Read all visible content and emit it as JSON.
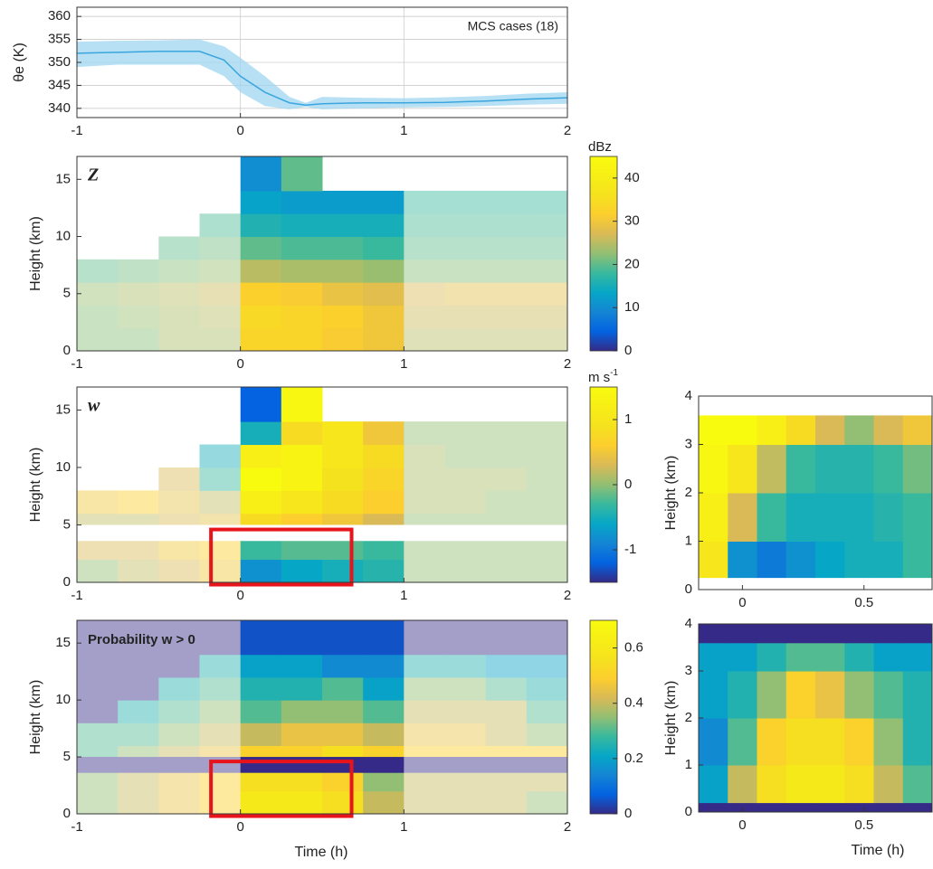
{
  "chart_data": [
    {
      "type": "line",
      "ylabel": "θe (K)",
      "annotation": "MCS cases (18)",
      "x": [
        -1,
        -0.75,
        -0.5,
        -0.25,
        -0.1,
        0,
        0.15,
        0.3,
        0.4,
        0.5,
        0.75,
        1,
        1.25,
        1.5,
        1.75,
        2
      ],
      "values": [
        352,
        352.2,
        352.4,
        352.4,
        350.5,
        347,
        343.5,
        341.2,
        340.7,
        341,
        341.2,
        341.2,
        341.3,
        341.6,
        342,
        342.3
      ],
      "lower": [
        349,
        349.5,
        349.5,
        349.5,
        347,
        343.5,
        340.5,
        339.8,
        340.3,
        339.8,
        340,
        340.2,
        340.3,
        340.5,
        340.8,
        341
      ],
      "upper": [
        354.5,
        354.7,
        354.8,
        355,
        353.5,
        351,
        347,
        342.5,
        341.2,
        342.5,
        342.3,
        342.2,
        342.4,
        342.7,
        343.2,
        343.5
      ],
      "color": "#3aa6dd",
      "band_color": "#9fd6f2",
      "xlim": [
        -1,
        2
      ],
      "xticks": [
        -1,
        0,
        1,
        2
      ],
      "ylim": [
        338,
        362
      ],
      "yticks": [
        340,
        345,
        350,
        355,
        360
      ],
      "grid": true
    },
    {
      "type": "heatmap",
      "title": "Z",
      "ylabel": "Height (km)",
      "xlim": [
        -1,
        2
      ],
      "xticks": [
        -1,
        0,
        1,
        2
      ],
      "ylim": [
        0,
        17
      ],
      "yticks": [
        0,
        5,
        10,
        15
      ],
      "x_edges": [
        -1,
        -0.75,
        -0.5,
        -0.25,
        0,
        0.25,
        0.5,
        0.75,
        1,
        1.25,
        1.5,
        1.75,
        2
      ],
      "y_edges": [
        0,
        2,
        4,
        6,
        8,
        10,
        12,
        14,
        17
      ],
      "values": [
        [
          22,
          22,
          24,
          24,
          33,
          33,
          31,
          30,
          25,
          25,
          25,
          25
        ],
        [
          22,
          23,
          24,
          25,
          34,
          33,
          32,
          30,
          26,
          26,
          26,
          26
        ],
        [
          23,
          24,
          25,
          26,
          32,
          31,
          29,
          28,
          27,
          28,
          28,
          28
        ],
        [
          20,
          21,
          22,
          23,
          25,
          24,
          24,
          23,
          22,
          22,
          22,
          22
        ],
        [
          null,
          null,
          20,
          21,
          20,
          19,
          19,
          18,
          20,
          20,
          20,
          20
        ],
        [
          null,
          null,
          null,
          19,
          16,
          15,
          15,
          15,
          19,
          19,
          19,
          19
        ],
        [
          null,
          null,
          null,
          null,
          13,
          12,
          12,
          12,
          18,
          18,
          18,
          18
        ],
        [
          null,
          null,
          null,
          null,
          10,
          20,
          null,
          null,
          null,
          null,
          null,
          null
        ]
      ],
      "highlight_x": [
        0,
        1
      ],
      "colorbar": {
        "label": "dBz",
        "clim": [
          0,
          45
        ],
        "ticks": [
          0,
          10,
          20,
          30,
          40
        ]
      }
    },
    {
      "type": "heatmap",
      "title": "w",
      "ylabel": "Height (km)",
      "xlim": [
        -1,
        2
      ],
      "xticks": [
        -1,
        0,
        1,
        2
      ],
      "ylim": [
        0,
        17
      ],
      "yticks": [
        0,
        5,
        10,
        15
      ],
      "x_edges": [
        -1,
        -0.75,
        -0.5,
        -0.25,
        0,
        0.25,
        0.5,
        0.75,
        1,
        1.25,
        1.5,
        1.75,
        2
      ],
      "y_edges": [
        0,
        2,
        4,
        6,
        8,
        10,
        12,
        14,
        17
      ],
      "values": [
        [
          0,
          0.2,
          0.3,
          0.5,
          -0.8,
          -0.6,
          -0.5,
          -0.4,
          0,
          0,
          0,
          0
        ],
        [
          0.3,
          0.3,
          0.5,
          0.6,
          -0.3,
          -0.2,
          -0.2,
          -0.3,
          0,
          0,
          0,
          0
        ],
        [
          0.2,
          0.2,
          0.3,
          0.4,
          0.8,
          0.6,
          0.5,
          0.3,
          0,
          0,
          0,
          0
        ],
        [
          0.5,
          0.6,
          0.4,
          0.2,
          1.2,
          1.0,
          0.8,
          0.6,
          0.1,
          0.1,
          0,
          0
        ],
        [
          null,
          null,
          0.3,
          -0.3,
          1.5,
          1.3,
          0.9,
          0.7,
          0.1,
          0.1,
          0.1,
          0
        ],
        [
          null,
          null,
          null,
          -0.5,
          1.2,
          1.3,
          1.0,
          0.8,
          0.1,
          0,
          0,
          0
        ],
        [
          null,
          null,
          null,
          null,
          -0.5,
          0.8,
          1.0,
          0.5,
          0,
          0,
          0,
          0
        ],
        [
          null,
          null,
          null,
          null,
          -1.2,
          1.4,
          null,
          null,
          null,
          null,
          null,
          null
        ]
      ],
      "highlight_x": [
        0,
        1
      ],
      "gap": [
        3.6,
        5
      ],
      "gap_fill": "#ffffff",
      "box": {
        "x": [
          -0.18,
          0.68
        ],
        "y": [
          -0.2,
          4.6
        ],
        "color": "#e8141b"
      },
      "colorbar": {
        "label": "m s",
        "label_superscript": "-1",
        "clim": [
          -1.5,
          1.5
        ],
        "ticks": [
          -1,
          0,
          1
        ]
      }
    },
    {
      "type": "heatmap",
      "title": "Probability w > 0",
      "ylabel": "Height (km)",
      "xlabel": "Time (h)",
      "xlim": [
        -1,
        2
      ],
      "xticks": [
        -1,
        0,
        1,
        2
      ],
      "ylim": [
        0,
        17
      ],
      "yticks": [
        0,
        5,
        10,
        15
      ],
      "x_edges": [
        -1,
        -0.75,
        -0.5,
        -0.25,
        0,
        0.25,
        0.5,
        0.75,
        1,
        1.25,
        1.5,
        1.75,
        2
      ],
      "y_edges": [
        0,
        2,
        4,
        6,
        8,
        10,
        12,
        14,
        17
      ],
      "values": [
        [
          0.35,
          0.4,
          0.45,
          0.5,
          0.6,
          0.6,
          0.55,
          0.4,
          0.4,
          0.4,
          0.4,
          0.35
        ],
        [
          0.35,
          0.4,
          0.45,
          0.5,
          0.55,
          0.55,
          0.5,
          0.35,
          0.4,
          0.4,
          0.4,
          0.4
        ],
        [
          0.3,
          0.35,
          0.4,
          0.45,
          0.5,
          0.5,
          0.55,
          0.5,
          0.5,
          0.5,
          0.5,
          0.5
        ],
        [
          0.3,
          0.3,
          0.35,
          0.4,
          0.4,
          0.45,
          0.45,
          0.4,
          0.45,
          0.45,
          0.4,
          0.35
        ],
        [
          0,
          0.25,
          0.3,
          0.35,
          0.3,
          0.35,
          0.35,
          0.3,
          0.4,
          0.4,
          0.4,
          0.3
        ],
        [
          0,
          0,
          0.25,
          0.3,
          0.25,
          0.25,
          0.3,
          0.2,
          0.35,
          0.35,
          0.3,
          0.25
        ],
        [
          0,
          0,
          0,
          0.25,
          0.2,
          0.2,
          0.15,
          0.15,
          0.25,
          0.25,
          0.2,
          0.2
        ],
        [
          0,
          0,
          0,
          0,
          0.05,
          0.05,
          0.05,
          0.05,
          0,
          0,
          0,
          0
        ]
      ],
      "highlight_x": [
        0,
        1
      ],
      "gap": [
        3.6,
        5
      ],
      "gap_fill": "#352a87",
      "box": {
        "x": [
          -0.18,
          0.68
        ],
        "y": [
          -0.2,
          4.6
        ],
        "color": "#e8141b"
      },
      "colorbar": {
        "clim": [
          0,
          0.7
        ],
        "ticks": [
          0,
          0.2,
          0.4,
          0.6
        ]
      }
    },
    {
      "type": "heatmap",
      "ylabel": "Height (km)",
      "xlim": [
        -0.18,
        0.78
      ],
      "xticks": [
        0,
        0.5
      ],
      "ylim": [
        0,
        4
      ],
      "yticks": [
        0,
        1,
        2,
        3,
        4
      ],
      "x_edges": [
        -0.18,
        -0.06,
        0.06,
        0.18,
        0.3,
        0.42,
        0.54,
        0.66,
        0.78
      ],
      "y_edges": [
        0.25,
        1,
        2,
        3,
        3.6
      ],
      "values": [
        [
          1.0,
          -0.8,
          -1.0,
          -0.8,
          -0.6,
          -0.5,
          -0.5,
          -0.3
        ],
        [
          1.2,
          0.3,
          -0.3,
          -0.5,
          -0.5,
          -0.5,
          -0.4,
          -0.3
        ],
        [
          1.4,
          1.0,
          0.2,
          -0.3,
          -0.4,
          -0.4,
          -0.3,
          -0.1
        ],
        [
          1.5,
          1.5,
          1.2,
          0.8,
          0.3,
          0,
          0.3,
          0.5
        ]
      ],
      "clim": [
        -1.5,
        1.5
      ]
    },
    {
      "type": "heatmap",
      "ylabel": "Height (km)",
      "xlabel": "Time (h)",
      "xlim": [
        -0.18,
        0.78
      ],
      "xticks": [
        0,
        0.5
      ],
      "ylim": [
        0,
        4
      ],
      "yticks": [
        0,
        1,
        2,
        3,
        4
      ],
      "x_edges": [
        -0.18,
        -0.06,
        0.06,
        0.18,
        0.3,
        0.42,
        0.54,
        0.66,
        0.78
      ],
      "y_edges": [
        0,
        0.2,
        1,
        2,
        3,
        3.6,
        4
      ],
      "values": [
        [
          0,
          0,
          0,
          0,
          0,
          0,
          0,
          0
        ],
        [
          0.2,
          0.4,
          0.55,
          0.6,
          0.6,
          0.55,
          0.4,
          0.3
        ],
        [
          0.15,
          0.3,
          0.5,
          0.55,
          0.55,
          0.5,
          0.35,
          0.25
        ],
        [
          0.2,
          0.25,
          0.35,
          0.5,
          0.45,
          0.35,
          0.3,
          0.25
        ],
        [
          0.2,
          0.2,
          0.25,
          0.3,
          0.3,
          0.25,
          0.2,
          0.2
        ],
        [
          0,
          0,
          0,
          0,
          0,
          0,
          0,
          0
        ]
      ],
      "clim": [
        0,
        0.7
      ]
    }
  ]
}
